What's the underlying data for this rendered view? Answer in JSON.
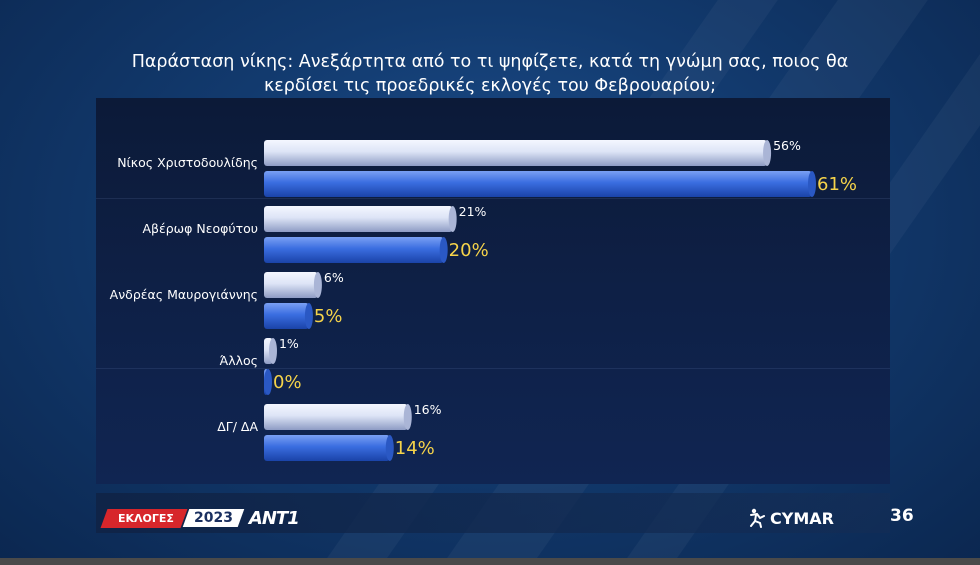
{
  "title": "Παράσταση νίκης: Ανεξάρτητα από το τι ψηφίζετε, κατά τη γνώμη σας, ποιος θα κερδίσει τις προεδρικές εκλογές του Φεβρουαρίου;",
  "title_line1": "Παράσταση νίκης: Ανεξάρτητα από το τι ψηφίζετε, κατά τη γνώμη σας, ποιος θα",
  "title_line2": "κερδίσει τις προεδρικές εκλογές του Φεβρουαρίου;",
  "chart_data": {
    "type": "bar",
    "orientation": "horizontal",
    "categories": [
      "Νίκος Χριστοδουλίδης",
      "Αβέρωφ Νεοφύτου",
      "Ανδρέας Μαυρογιάννης",
      "Άλλος",
      "ΔΓ/ ΔΑ"
    ],
    "series": [
      {
        "values": [
          56,
          21,
          6,
          1,
          16
        ],
        "labels": [
          "56%",
          "21%",
          "6%",
          "1%",
          "16%"
        ],
        "color": "#c9d3ec"
      },
      {
        "values": [
          61,
          20,
          5,
          0,
          14
        ],
        "labels": [
          "61%",
          "20%",
          "5%",
          "0%",
          "14%"
        ],
        "color": "#2f63d6"
      }
    ],
    "xlim": [
      0,
      65
    ],
    "title": "",
    "xlabel": "",
    "ylabel": "",
    "grid": false,
    "legend": "none"
  },
  "footer": {
    "elections_label": "ΕΚΛΟΓΕΣ",
    "year": "2023",
    "channel": "ANT1",
    "brand": "CYMAR",
    "page": "36"
  },
  "colors": {
    "label_highlight": "#f5d34a",
    "badge_red": "#d7262b"
  }
}
